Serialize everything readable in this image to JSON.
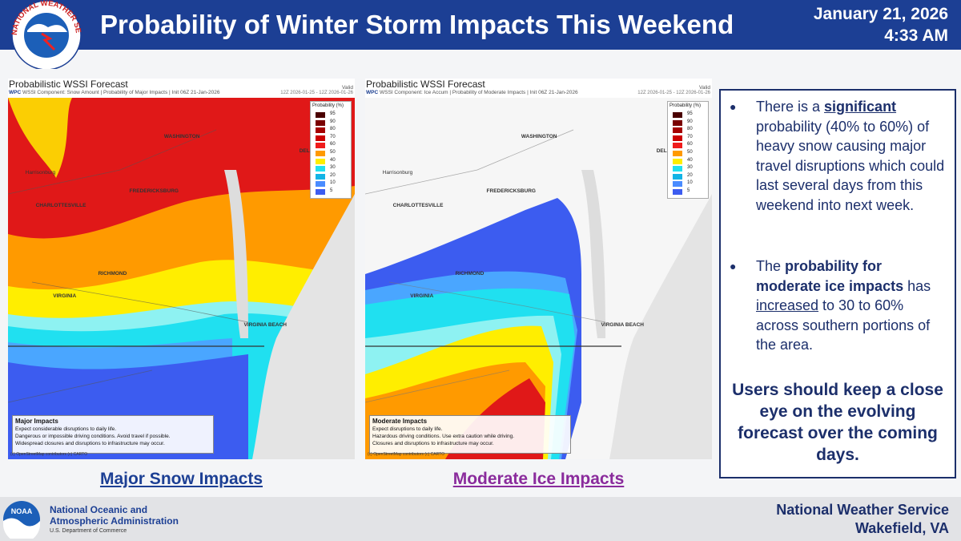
{
  "header": {
    "logo_text": "NATIONAL WEATHER SERVICE",
    "title": "Probability of Winter Storm Impacts This Weekend",
    "date": "January 21, 2026",
    "time": "4:33 AM"
  },
  "maps": [
    {
      "title": "Probabilistic WSSI Forecast",
      "subtitle_lead": "WPC",
      "subtitle": "WSSI Component: Snow Amount | Probability of Major Impacts | Init 06Z 21-Jan-2026",
      "valid": "Valid",
      "valid_range": "12Z 2026-01-25 - 12Z 2026-01-26",
      "legend_title": "Probability (%)",
      "legend_levels": [
        95,
        90,
        80,
        70,
        60,
        50,
        40,
        30,
        20,
        10,
        5
      ],
      "impact_title": "Major Impacts",
      "impact_lines": [
        "Expect considerable disruptions to daily life.",
        "Dangerous or impossible driving conditions. Avoid travel if possible.",
        "Widespread closures and disruptions to infrastructure may occur."
      ],
      "attribution": "(c) OpenStreetMap contributors (c) CARTO",
      "places": [
        "WASHINGTON",
        "FREDERICKSBURG",
        "CHARLOTTESVILLE",
        "RICHMOND",
        "DELAWARE",
        "VIRGINIA",
        "VIRGINIA BEACH",
        "Harrisonburg"
      ],
      "link": "Major Snow Impacts"
    },
    {
      "title": "Probabilistic WSSI Forecast",
      "subtitle_lead": "WPC",
      "subtitle": "WSSI Component: Ice Accum | Probability of Moderate Impacts | Init 06Z 21-Jan-2026",
      "valid": "Valid",
      "valid_range": "12Z 2026-01-25 - 12Z 2026-01-26",
      "legend_title": "Probability (%)",
      "legend_levels": [
        95,
        90,
        80,
        70,
        60,
        50,
        40,
        30,
        20,
        10,
        5
      ],
      "impact_title": "Moderate Impacts",
      "impact_lines": [
        "Expect disruptions to daily life.",
        "Hazardous driving conditions. Use extra caution while driving.",
        "Closures and disruptions to infrastructure may occur."
      ],
      "attribution": "(c) OpenStreetMap contributors (c) CARTO",
      "places": [
        "WASHINGTON",
        "FREDERICKSBURG",
        "CHARLOTTESVILLE",
        "RICHMOND",
        "DELAWARE",
        "VIRGINIA",
        "VIRGINIA BEACH",
        "Harrisonburg"
      ],
      "link": "Moderate Ice Impacts"
    }
  ],
  "summary": {
    "bullet1": [
      "There is a ",
      "significant",
      " probability (40% to 60%) of heavy snow causing major travel disruptions which could last several days from this weekend into next week."
    ],
    "bullet2": [
      "The ",
      "probability for moderate ice impacts",
      " has ",
      "increased",
      " to 30 to 60% across southern portions of the area."
    ],
    "callout": "Users should keep a close eye on the evolving forecast over the coming days."
  },
  "footer": {
    "noaa_logo": "NOAA",
    "noaa_line1": "National Oceanic and",
    "noaa_line2": "Atmospheric Administration",
    "noaa_line3": "U.S. Department of Commerce",
    "office_line1": "National Weather Service",
    "office_line2": "Wakefield, VA"
  }
}
